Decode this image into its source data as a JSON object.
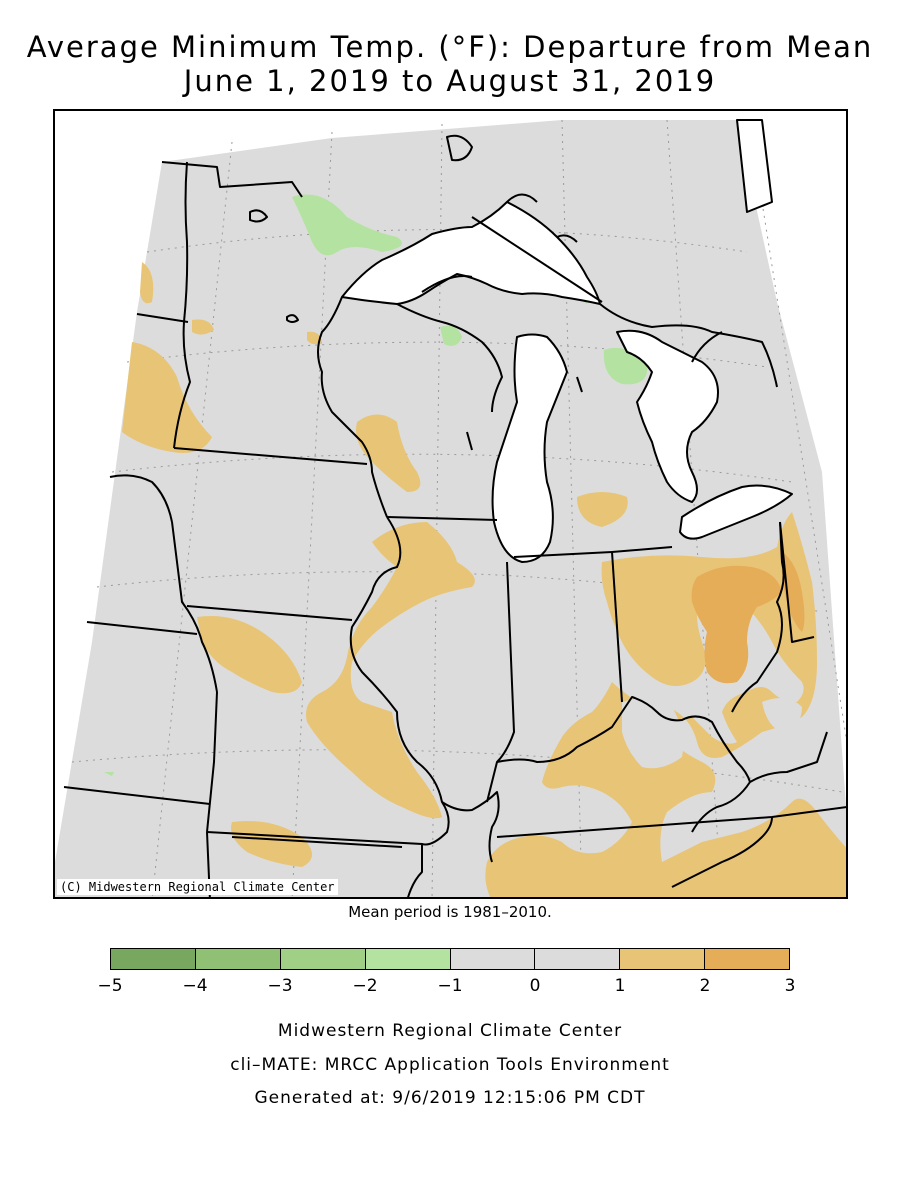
{
  "title": {
    "line1": "Average Minimum Temp. (°F): Departure from Mean",
    "line2": "June 1, 2019 to August 31, 2019"
  },
  "map": {
    "copyright": "(C) Midwestern Regional Climate Center",
    "colors": {
      "background": "#dcdcdc",
      "water": "#ffffff",
      "border": "#000000",
      "grid": "#9a9a9a"
    }
  },
  "mean_note": "Mean period is 1981–2010.",
  "legend": {
    "bins": [
      {
        "min": -5,
        "max": -4,
        "color": "#78a85f"
      },
      {
        "min": -4,
        "max": -3,
        "color": "#8fc073"
      },
      {
        "min": -3,
        "max": -2,
        "color": "#9fd086"
      },
      {
        "min": -2,
        "max": -1,
        "color": "#b4e2a0"
      },
      {
        "min": -1,
        "max": 0,
        "color": "#dcdcdc"
      },
      {
        "min": 0,
        "max": 1,
        "color": "#dcdcdc"
      },
      {
        "min": 1,
        "max": 2,
        "color": "#e8c476"
      },
      {
        "min": 2,
        "max": 3,
        "color": "#e6ad58"
      }
    ],
    "ticks": [
      "−5",
      "−4",
      "−3",
      "−2",
      "−1",
      "0",
      "1",
      "2",
      "3"
    ]
  },
  "footer": {
    "line1": "Midwestern Regional Climate Center",
    "line2": "cli–MATE: MRCC Application Tools Environment",
    "line3": "Generated at: 9/6/2019 12:15:06 PM CDT"
  }
}
